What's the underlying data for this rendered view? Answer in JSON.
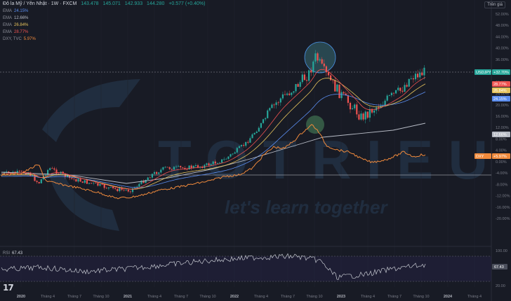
{
  "header": {
    "title": "Đô la Mỹ / Yên Nhật · 1W · FXCM",
    "ohlc": [
      "143.478",
      "145.071",
      "142.933",
      "144.280",
      "+0.577 (+0.40%)"
    ]
  },
  "top_right_button": "Trên giá",
  "indicators": [
    {
      "name": "EMA",
      "value": "24.15%",
      "color": "#5b8def"
    },
    {
      "name": "EMA",
      "value": "12.66%",
      "color": "#b8bcc6"
    },
    {
      "name": "EMA",
      "value": "26.84%",
      "color": "#e6c35c"
    },
    {
      "name": "EMA",
      "value": "28.77%",
      "color": "#ef5350"
    },
    {
      "name": "DXY, TVC",
      "value": "5.97%",
      "color": "#f08a3c"
    }
  ],
  "watermark": {
    "brand": "TOTRIEU",
    "slogan": "let's learn together"
  },
  "price_axis": [
    "52.00%",
    "48.00%",
    "44.00%",
    "40.00%",
    "36.00%",
    "32.00%",
    "28.00%",
    "24.00%",
    "20.00%",
    "16.00%",
    "12.00%",
    "8.00%",
    "4.00%",
    "0.00%",
    "-4.00%",
    "-8.00%",
    "-12.00%",
    "-16.00%",
    "-20.00%"
  ],
  "price_tags": [
    {
      "text": "USDJPY",
      "value": "+32.70%",
      "color": "#26a69a"
    },
    {
      "text": "",
      "value": "28.77%",
      "color": "#ef5350"
    },
    {
      "text": "",
      "value": "26.84%",
      "color": "#e6c35c"
    },
    {
      "text": "",
      "value": "24.15%",
      "color": "#5b8def"
    },
    {
      "text": "",
      "value": "12.66%",
      "color": "#b8bcc6"
    },
    {
      "text": "DXY",
      "value": "+5.97%",
      "color": "#f08a3c"
    }
  ],
  "time_axis": [
    "2020",
    "Tháng 4",
    "Tháng 7",
    "Tháng 10",
    "2021",
    "Tháng 4",
    "Tháng 7",
    "Tháng 10",
    "2022",
    "Tháng 4",
    "Tháng 7",
    "Tháng 10",
    "2023",
    "Tháng 4",
    "Tháng 7",
    "Tháng 10",
    "2024",
    "Tháng 4"
  ],
  "rsi": {
    "label": "RSI",
    "value": "67.43",
    "axis": [
      "100.00",
      "50.00",
      "20.00"
    ]
  },
  "logo": "17"
}
